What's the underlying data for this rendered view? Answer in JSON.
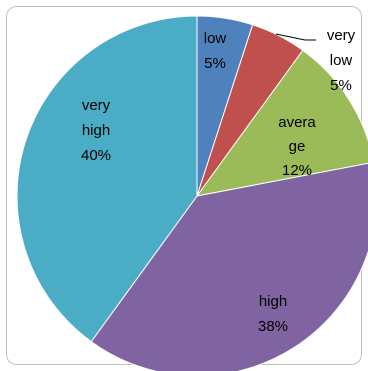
{
  "chart_data": {
    "type": "pie",
    "title": "",
    "start_angle_deg": 0,
    "direction": "clockwise",
    "legend": "none",
    "slices": [
      {
        "label": "low",
        "value": 5,
        "value_label": "5%",
        "color": "#4F81BD"
      },
      {
        "label": "very low",
        "value": 5,
        "value_label": "5%",
        "color": "#C0504D"
      },
      {
        "label": "average",
        "value": 12,
        "value_label": "12%",
        "color": "#9BBB59"
      },
      {
        "label": "high",
        "value": 38,
        "value_label": "38%",
        "color": "#8064A2"
      },
      {
        "label": "very high",
        "value": 40,
        "value_label": "40%",
        "color": "#4BACC6"
      }
    ]
  }
}
